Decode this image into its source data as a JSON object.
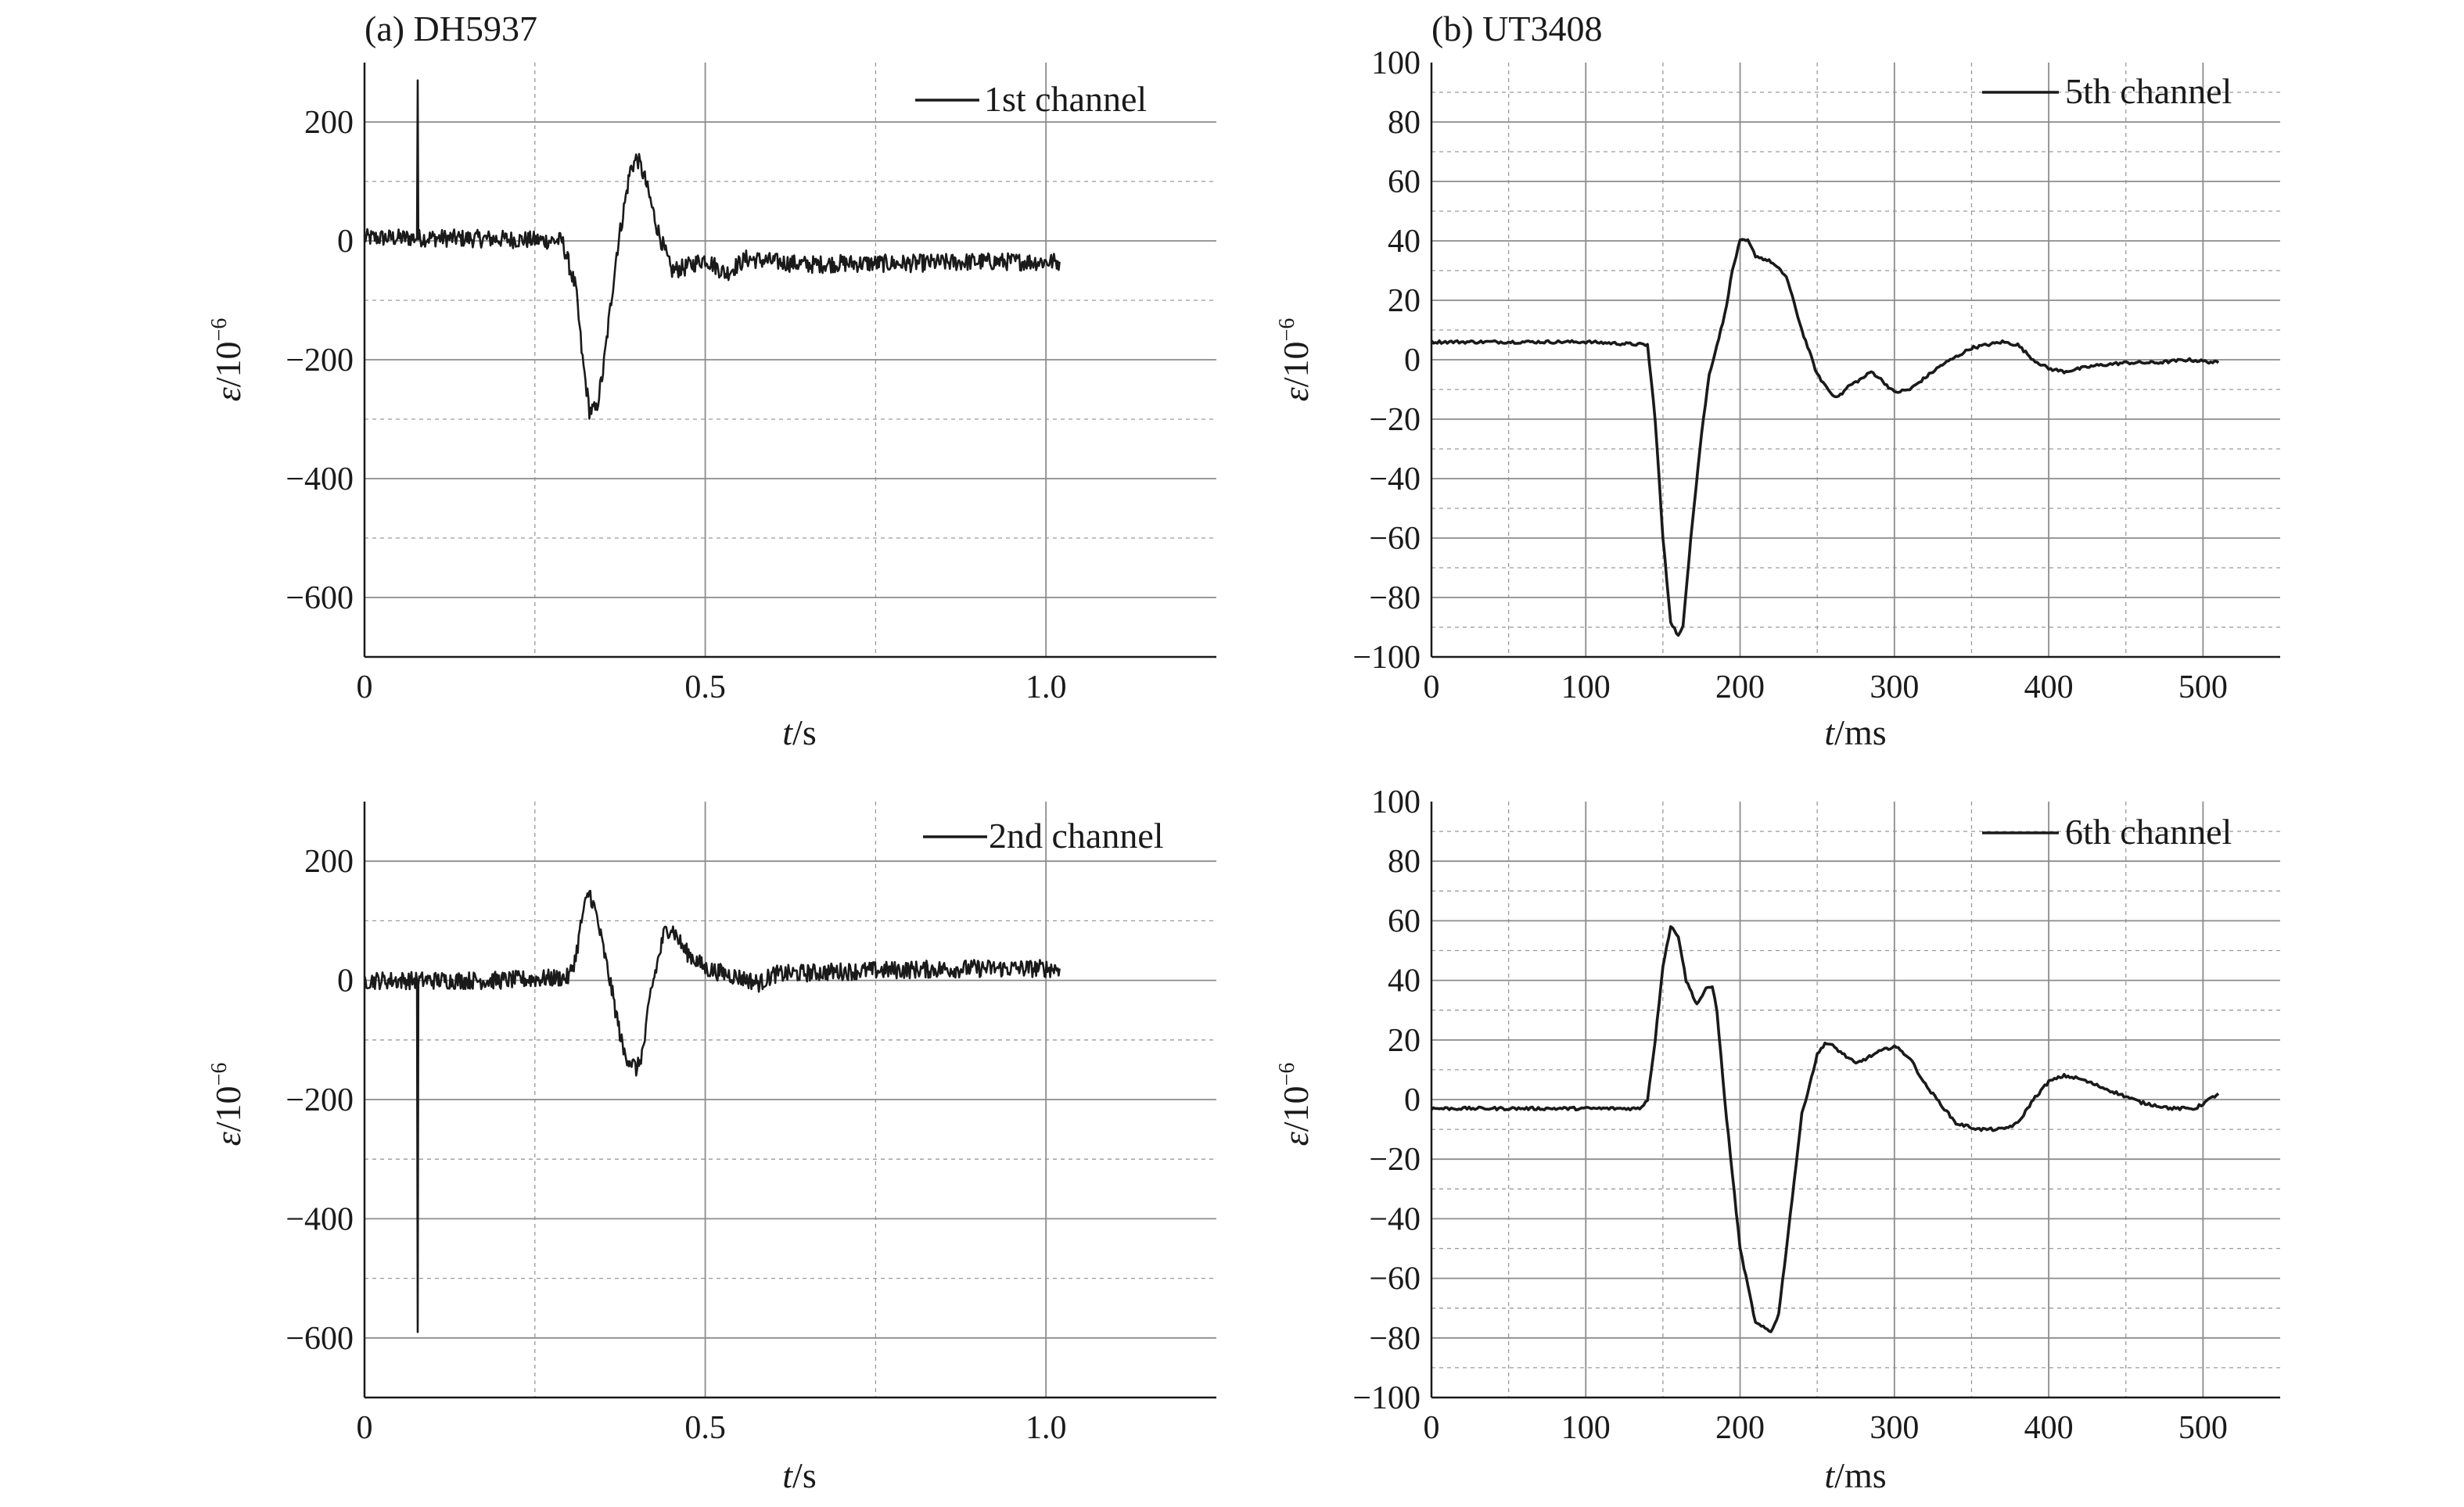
{
  "panels": [
    {
      "title": "(a) DH5937",
      "xlabel": "s",
      "ylabel": "10",
      "legend": "1st channel",
      "xticks": [
        "0",
        "0.5",
        "1.0"
      ],
      "yticks": [
        "200",
        "0",
        "−200",
        "−400",
        "−600"
      ]
    },
    {
      "title": "(b) UT3408",
      "xlabel": "ms",
      "ylabel": "10",
      "legend": "5th channel",
      "xticks": [
        "0",
        "100",
        "200",
        "300",
        "400",
        "500"
      ],
      "yticks": [
        "100",
        "80",
        "60",
        "40",
        "20",
        "0",
        "−20",
        "−40",
        "−60",
        "−80",
        "−100"
      ]
    },
    {
      "title": "",
      "xlabel": "s",
      "ylabel": "10",
      "legend": "2nd channel",
      "xticks": [
        "0",
        "0.5",
        "1.0"
      ],
      "yticks": [
        "200",
        "0",
        "−200",
        "−400",
        "−600"
      ]
    },
    {
      "title": "",
      "xlabel": "ms",
      "ylabel": "10",
      "legend": "6th channel",
      "xticks": [
        "0",
        "100",
        "200",
        "300",
        "400",
        "500"
      ],
      "yticks": [
        "100",
        "80",
        "60",
        "40",
        "20",
        "0",
        "−20",
        "−40",
        "−60",
        "−80",
        "−100"
      ]
    }
  ],
  "axis_symbols": {
    "x": "t",
    "y": "ε",
    "y_exp": "−6",
    "slash": "/"
  },
  "chart_data": [
    {
      "type": "line",
      "title": "(a) DH5937",
      "xlabel": "t/s",
      "ylabel": "ε/10⁻⁶",
      "xlim": [
        0,
        1.25
      ],
      "ylim": [
        -700,
        300
      ],
      "grid": true,
      "legend_position": "top-right",
      "noise_amplitude": 15,
      "series": [
        {
          "name": "1st channel",
          "x": [
            0,
            0.05,
            0.077,
            0.078,
            0.079,
            0.1,
            0.2,
            0.29,
            0.31,
            0.32,
            0.33,
            0.34,
            0.35,
            0.37,
            0.39,
            0.4,
            0.41,
            0.43,
            0.45,
            0.47,
            0.5,
            0.53,
            0.56,
            0.6,
            0.65,
            0.7,
            0.8,
            0.9,
            1.02
          ],
          "y": [
            5,
            5,
            5,
            270,
            5,
            5,
            3,
            0,
            -80,
            -200,
            -285,
            -285,
            -220,
            -20,
            120,
            140,
            110,
            20,
            -50,
            -45,
            -30,
            -55,
            -30,
            -35,
            -40,
            -38,
            -38,
            -35,
            -35
          ]
        }
      ]
    },
    {
      "type": "line",
      "title": "(b) UT3408",
      "xlabel": "t/ms",
      "ylabel": "ε/10⁻⁶",
      "xlim": [
        0,
        550
      ],
      "ylim": [
        -100,
        100
      ],
      "grid": true,
      "legend_position": "top-right",
      "noise_amplitude": 0.5,
      "series": [
        {
          "name": "5th channel",
          "x": [
            0,
            50,
            100,
            140,
            145,
            150,
            155,
            160,
            163,
            168,
            175,
            180,
            190,
            195,
            200,
            205,
            210,
            220,
            230,
            240,
            250,
            260,
            265,
            270,
            280,
            285,
            290,
            300,
            310,
            330,
            350,
            370,
            380,
            390,
            400,
            410,
            430,
            450,
            470,
            490,
            510
          ],
          "y": [
            6,
            6,
            6,
            5,
            -20,
            -60,
            -88,
            -93,
            -90,
            -60,
            -25,
            -5,
            15,
            30,
            40,
            40,
            35,
            33,
            28,
            10,
            -5,
            -12,
            -12,
            -9,
            -6,
            -4,
            -6,
            -11,
            -10,
            -2,
            4,
            6,
            5,
            0,
            -3,
            -4,
            -2,
            -1,
            -1,
            0,
            -1
          ]
        }
      ]
    },
    {
      "type": "line",
      "title": "",
      "xlabel": "t/s",
      "ylabel": "ε/10⁻⁶",
      "xlim": [
        0,
        1.25
      ],
      "ylim": [
        -700,
        300
      ],
      "grid": true,
      "legend_position": "top-right",
      "noise_amplitude": 15,
      "series": [
        {
          "name": "2nd channel",
          "x": [
            0,
            0.05,
            0.077,
            0.078,
            0.079,
            0.1,
            0.2,
            0.3,
            0.31,
            0.32,
            0.33,
            0.34,
            0.36,
            0.38,
            0.4,
            0.41,
            0.42,
            0.44,
            0.45,
            0.47,
            0.5,
            0.55,
            0.58,
            0.6,
            0.7,
            0.8,
            0.9,
            1.02
          ],
          "y": [
            0,
            0,
            0,
            -590,
            0,
            0,
            0,
            5,
            40,
            110,
            150,
            110,
            0,
            -120,
            -150,
            -110,
            -20,
            80,
            90,
            50,
            20,
            5,
            -5,
            10,
            15,
            18,
            20,
            20
          ]
        }
      ]
    },
    {
      "type": "line",
      "title": "",
      "xlabel": "t/ms",
      "ylabel": "ε/10⁻⁶",
      "xlim": [
        0,
        550
      ],
      "ylim": [
        -100,
        100
      ],
      "grid": true,
      "legend_position": "top-right",
      "noise_amplitude": 0.5,
      "series": [
        {
          "name": "6th channel",
          "x": [
            0,
            50,
            100,
            135,
            140,
            145,
            150,
            155,
            160,
            165,
            172,
            178,
            182,
            185,
            190,
            200,
            210,
            220,
            225,
            230,
            240,
            250,
            255,
            260,
            275,
            290,
            300,
            310,
            320,
            340,
            355,
            370,
            380,
            390,
            400,
            410,
            420,
            440,
            460,
            480,
            495,
            510
          ],
          "y": [
            -3,
            -3,
            -3,
            -3,
            0,
            20,
            45,
            58,
            55,
            40,
            32,
            37,
            38,
            30,
            0,
            -50,
            -75,
            -78,
            -72,
            -50,
            -5,
            15,
            19,
            18,
            12,
            16,
            18,
            14,
            5,
            -8,
            -10,
            -10,
            -8,
            0,
            6,
            8,
            7,
            3,
            -1,
            -3,
            -3,
            2
          ]
        }
      ]
    }
  ]
}
